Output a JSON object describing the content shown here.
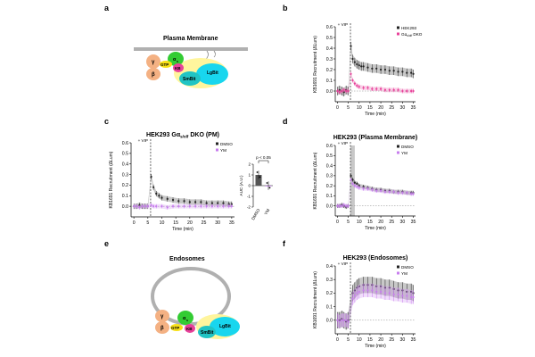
{
  "panels": [
    {
      "letter": "a"
    },
    {
      "letter": "b"
    },
    {
      "letter": "c"
    },
    {
      "letter": "d"
    },
    {
      "letter": "e"
    },
    {
      "letter": "f"
    }
  ],
  "diagram_a": {
    "title": "Plasma Membrane",
    "labels": {
      "gamma": "γ",
      "beta": "β",
      "alpha": "α",
      "alpha_sub": "s",
      "gtp": "GTP",
      "kb": "KB",
      "smbit": "SmBit",
      "lgbit": "LgBit"
    },
    "colors": {
      "gbg": "#f4b183",
      "galpha": "#33cc33",
      "gtp": "#f7e017",
      "kb": "#e8419a",
      "smbit": "#21c4c4",
      "lgbit": "#18d6ee",
      "halo": "#fff59d",
      "membrane": "#b0b0b0"
    }
  },
  "diagram_e": {
    "title": "Endosomes",
    "labels": {
      "gamma": "γ",
      "beta": "β",
      "alpha": "α",
      "alpha_sub": "s",
      "gtp": "GTP",
      "kb": "KB",
      "smbit": "SmBit",
      "lgbit": "LgBit"
    }
  },
  "chart_data": [
    {
      "id": "b",
      "type": "line",
      "title": "",
      "xlabel": "Time (min)",
      "ylabel": "KB1691 Recruitment (ΔLum)",
      "xlim": [
        -1,
        36
      ],
      "ylim": [
        -0.1,
        0.6
      ],
      "xticks": [
        0,
        5,
        10,
        15,
        20,
        25,
        30,
        35
      ],
      "yticks": [
        0.0,
        0.1,
        0.2,
        0.3,
        0.4,
        0.5,
        0.6
      ],
      "ytick_labels": [
        "0.0",
        "0.1",
        "0.2",
        "0.3",
        "0.4",
        "0.5",
        "0.6"
      ],
      "annotation": "+ VIP",
      "vip_time": 6,
      "legend_position": "top-right",
      "series": [
        {
          "name": "HEK293",
          "color": "#222222",
          "err": 0.04,
          "points": [
            [
              0,
              0.0
            ],
            [
              1,
              0.01
            ],
            [
              2,
              0.0
            ],
            [
              3,
              -0.01
            ],
            [
              4,
              0.01
            ],
            [
              5,
              0.0
            ],
            [
              6.2,
              0.42
            ],
            [
              7,
              0.3
            ],
            [
              8,
              0.27
            ],
            [
              9,
              0.25
            ],
            [
              10,
              0.24
            ],
            [
              11,
              0.23
            ],
            [
              12,
              0.23
            ],
            [
              14,
              0.22
            ],
            [
              16,
              0.21
            ],
            [
              18,
              0.21
            ],
            [
              20,
              0.2
            ],
            [
              22,
              0.2
            ],
            [
              24,
              0.19
            ],
            [
              26,
              0.19
            ],
            [
              28,
              0.18
            ],
            [
              30,
              0.18
            ],
            [
              32,
              0.17
            ],
            [
              34,
              0.17
            ],
            [
              35,
              0.16
            ]
          ]
        },
        {
          "name": "Gαs/olf DKO",
          "name_main": "Gα",
          "name_sub": "s/olf",
          "name_tail": " DKO",
          "color": "#e8419a",
          "err": 0.02,
          "points": [
            [
              0,
              0.0
            ],
            [
              1,
              -0.01
            ],
            [
              2,
              0.0
            ],
            [
              3,
              0.01
            ],
            [
              4,
              0.0
            ],
            [
              5,
              0.0
            ],
            [
              6.2,
              0.16
            ],
            [
              7,
              0.1
            ],
            [
              8,
              0.07
            ],
            [
              9,
              0.05
            ],
            [
              10,
              0.04
            ],
            [
              12,
              0.03
            ],
            [
              14,
              0.03
            ],
            [
              16,
              0.02
            ],
            [
              18,
              0.02
            ],
            [
              20,
              0.02
            ],
            [
              22,
              0.01
            ],
            [
              24,
              0.01
            ],
            [
              26,
              0.01
            ],
            [
              28,
              0.01
            ],
            [
              30,
              0.0
            ],
            [
              32,
              0.0
            ],
            [
              34,
              0.0
            ],
            [
              35,
              0.0
            ]
          ]
        }
      ]
    },
    {
      "id": "c",
      "type": "line",
      "title": "HEK293 Gαs/olf DKO (PM)",
      "title_main": "HEK293 Gα",
      "title_sub": "s/olf",
      "title_tail": " DKO (PM)",
      "xlabel": "Time (min)",
      "ylabel": "KB1691 Recruitment (ΔLum)",
      "xlim": [
        -1,
        36
      ],
      "ylim": [
        -0.1,
        0.6
      ],
      "xticks": [
        0,
        5,
        10,
        15,
        20,
        25,
        30,
        35
      ],
      "yticks": [
        0.0,
        0.1,
        0.2,
        0.3,
        0.4,
        0.5,
        0.6
      ],
      "ytick_labels": [
        "0.0",
        "0.1",
        "0.2",
        "0.3",
        "0.4",
        "0.5",
        "0.6"
      ],
      "annotation": "+ VIP",
      "vip_time": 6,
      "legend_position": "top-right",
      "series": [
        {
          "name": "DMSO",
          "color": "#222222",
          "err": 0.025,
          "points": [
            [
              0,
              0.0
            ],
            [
              1,
              0.0
            ],
            [
              2,
              0.01
            ],
            [
              3,
              0.0
            ],
            [
              4,
              0.0
            ],
            [
              5,
              0.0
            ],
            [
              6.2,
              0.28
            ],
            [
              7,
              0.18
            ],
            [
              8,
              0.12
            ],
            [
              9,
              0.1
            ],
            [
              10,
              0.08
            ],
            [
              12,
              0.07
            ],
            [
              14,
              0.06
            ],
            [
              16,
              0.05
            ],
            [
              18,
              0.05
            ],
            [
              20,
              0.04
            ],
            [
              22,
              0.04
            ],
            [
              24,
              0.04
            ],
            [
              26,
              0.03
            ],
            [
              28,
              0.03
            ],
            [
              30,
              0.03
            ],
            [
              32,
              0.03
            ],
            [
              34,
              0.02
            ],
            [
              35,
              0.02
            ]
          ]
        },
        {
          "name": "YM",
          "color": "#c77dee",
          "err": 0.02,
          "points": [
            [
              0,
              0.0
            ],
            [
              1,
              0.0
            ],
            [
              2,
              -0.01
            ],
            [
              3,
              0.0
            ],
            [
              4,
              0.0
            ],
            [
              5,
              0.0
            ],
            [
              6.2,
              0.01
            ],
            [
              7,
              0.0
            ],
            [
              8,
              0.0
            ],
            [
              10,
              0.0
            ],
            [
              12,
              -0.01
            ],
            [
              14,
              0.0
            ],
            [
              16,
              0.0
            ],
            [
              18,
              0.0
            ],
            [
              20,
              0.0
            ],
            [
              22,
              0.0
            ],
            [
              24,
              0.0
            ],
            [
              26,
              0.0
            ],
            [
              28,
              0.0
            ],
            [
              30,
              0.0
            ],
            [
              32,
              0.0
            ],
            [
              34,
              0.0
            ],
            [
              35,
              0.0
            ]
          ]
        }
      ]
    },
    {
      "id": "c-inset",
      "type": "bar",
      "title": "",
      "categories": [
        "DMSO",
        "YM"
      ],
      "values": [
        1.0,
        0.0
      ],
      "colors": [
        "#555555",
        "#c77dee"
      ],
      "ylabel": "AUC (A.U.)",
      "ylim": [
        -2,
        2
      ],
      "yticks": [
        -2,
        -1,
        0,
        1,
        2
      ],
      "annotation": "p < 0.05"
    },
    {
      "id": "d",
      "type": "line",
      "title": "HEK293 (Plasma Membrane)",
      "xlabel": "Time (min)",
      "ylabel": "KB1691 Recruitment (ΔLum)",
      "xlim": [
        -1,
        36
      ],
      "ylim": [
        -0.1,
        0.6
      ],
      "xticks": [
        0,
        5,
        10,
        15,
        20,
        25,
        30,
        35
      ],
      "yticks": [
        0.0,
        0.1,
        0.2,
        0.3,
        0.4,
        0.5,
        0.6
      ],
      "ytick_labels": [
        "0.0",
        "0.1",
        "0.2",
        "0.3",
        "0.4",
        "0.5",
        "0.6"
      ],
      "annotation": "+ VIP",
      "vip_time": 6,
      "shaded_window": [
        6,
        8
      ],
      "legend_position": "top-right",
      "series": [
        {
          "name": "DMSO",
          "color": "#222222",
          "err": 0.02,
          "points": [
            [
              0,
              0.0
            ],
            [
              1,
              0.0
            ],
            [
              2,
              0.01
            ],
            [
              3,
              0.0
            ],
            [
              4,
              -0.01
            ],
            [
              5,
              0.0
            ],
            [
              6.2,
              0.3
            ],
            [
              7,
              0.26
            ],
            [
              8,
              0.23
            ],
            [
              9,
              0.22
            ],
            [
              10,
              0.2
            ],
            [
              12,
              0.19
            ],
            [
              14,
              0.18
            ],
            [
              16,
              0.17
            ],
            [
              18,
              0.16
            ],
            [
              20,
              0.16
            ],
            [
              22,
              0.15
            ],
            [
              24,
              0.15
            ],
            [
              26,
              0.14
            ],
            [
              28,
              0.14
            ],
            [
              30,
              0.14
            ],
            [
              32,
              0.13
            ],
            [
              34,
              0.13
            ],
            [
              35,
              0.13
            ]
          ]
        },
        {
          "name": "YM",
          "color": "#c77dee",
          "err": 0.02,
          "points": [
            [
              0,
              0.0
            ],
            [
              1,
              0.0
            ],
            [
              2,
              0.0
            ],
            [
              3,
              0.01
            ],
            [
              4,
              0.0
            ],
            [
              5,
              0.0
            ],
            [
              6.2,
              0.26
            ],
            [
              7,
              0.22
            ],
            [
              8,
              0.2
            ],
            [
              9,
              0.19
            ],
            [
              10,
              0.18
            ],
            [
              12,
              0.17
            ],
            [
              14,
              0.17
            ],
            [
              16,
              0.16
            ],
            [
              18,
              0.15
            ],
            [
              20,
              0.15
            ],
            [
              22,
              0.14
            ],
            [
              24,
              0.14
            ],
            [
              26,
              0.14
            ],
            [
              28,
              0.13
            ],
            [
              30,
              0.13
            ],
            [
              32,
              0.13
            ],
            [
              34,
              0.12
            ],
            [
              35,
              0.12
            ]
          ]
        }
      ]
    },
    {
      "id": "f",
      "type": "line",
      "title": "HEK293 (Endosomes)",
      "xlabel": "Time (min)",
      "ylabel": "KB1691 Recruitment (ΔLum)",
      "xlim": [
        -1,
        36
      ],
      "ylim": [
        -0.1,
        0.4
      ],
      "xticks": [
        0,
        5,
        10,
        15,
        20,
        25,
        30,
        35
      ],
      "yticks": [
        0.0,
        0.1,
        0.2,
        0.3,
        0.4
      ],
      "ytick_labels": [
        "0.0",
        "0.1",
        "0.2",
        "0.3",
        "0.4"
      ],
      "annotation": "+ VIP",
      "vip_time": 6,
      "legend_position": "top-right",
      "series": [
        {
          "name": "DMSO",
          "color": "#222222",
          "err": 0.06,
          "points": [
            [
              0,
              0.0
            ],
            [
              1,
              0.0
            ],
            [
              2,
              0.01
            ],
            [
              3,
              0.0
            ],
            [
              4,
              -0.01
            ],
            [
              5,
              0.0
            ],
            [
              7,
              0.2
            ],
            [
              8,
              0.22
            ],
            [
              9,
              0.24
            ],
            [
              10,
              0.25
            ],
            [
              12,
              0.26
            ],
            [
              14,
              0.26
            ],
            [
              16,
              0.26
            ],
            [
              18,
              0.25
            ],
            [
              20,
              0.25
            ],
            [
              22,
              0.24
            ],
            [
              24,
              0.24
            ],
            [
              26,
              0.23
            ],
            [
              28,
              0.22
            ],
            [
              30,
              0.22
            ],
            [
              32,
              0.21
            ],
            [
              34,
              0.21
            ],
            [
              35,
              0.2
            ]
          ]
        },
        {
          "name": "YM",
          "color": "#c77dee",
          "err": 0.05,
          "points": [
            [
              0,
              0.0
            ],
            [
              1,
              -0.01
            ],
            [
              2,
              0.0
            ],
            [
              3,
              0.0
            ],
            [
              4,
              0.0
            ],
            [
              5,
              -0.01
            ],
            [
              7,
              0.16
            ],
            [
              8,
              0.18
            ],
            [
              9,
              0.2
            ],
            [
              10,
              0.21
            ],
            [
              12,
              0.22
            ],
            [
              14,
              0.22
            ],
            [
              16,
              0.22
            ],
            [
              18,
              0.21
            ],
            [
              20,
              0.21
            ],
            [
              22,
              0.2
            ],
            [
              24,
              0.2
            ],
            [
              26,
              0.19
            ],
            [
              28,
              0.19
            ],
            [
              30,
              0.18
            ],
            [
              32,
              0.18
            ],
            [
              34,
              0.17
            ],
            [
              35,
              0.17
            ]
          ]
        }
      ]
    }
  ]
}
